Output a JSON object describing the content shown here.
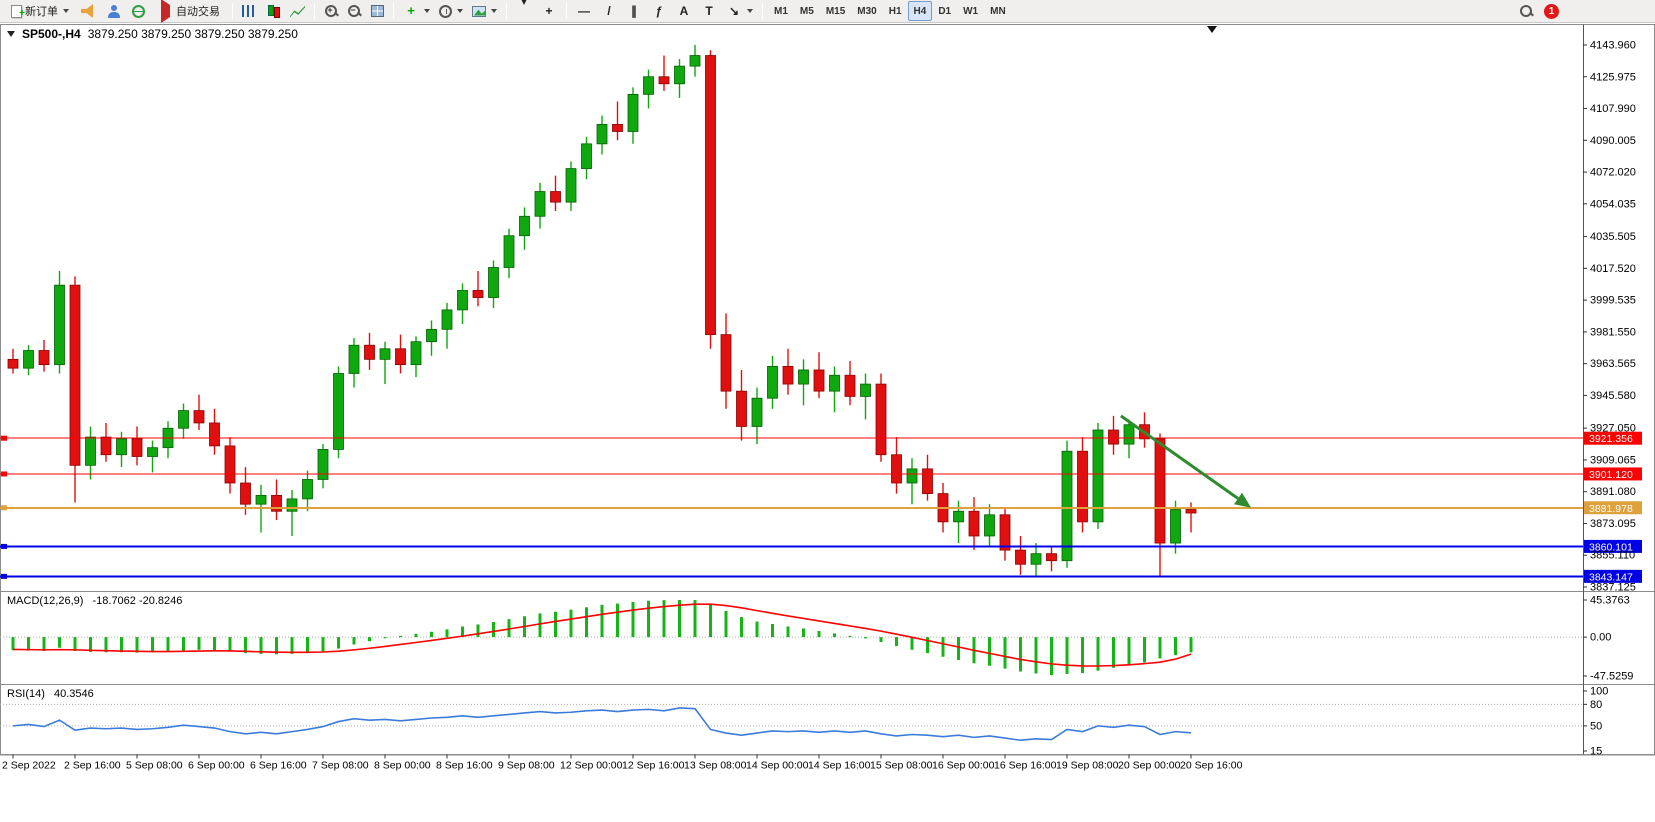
{
  "toolbar": {
    "new_order_label": "新订单",
    "autotrade_label": "自动交易",
    "timeframes": [
      "M1",
      "M5",
      "M15",
      "M30",
      "H1",
      "H4",
      "D1",
      "W1",
      "MN"
    ],
    "active_timeframe": "H4",
    "notification_count": "1"
  },
  "chart": {
    "title": "SP500-,H4",
    "ohlc": "3879.250 3879.250 3879.250 3879.250"
  },
  "macd": {
    "label": "MACD(12,26,9)",
    "values": "-18.7062 -20.8246",
    "axis": [
      "45.3763",
      "0.00",
      "-47.5259"
    ]
  },
  "rsi": {
    "label": "RSI(14)",
    "value": "40.3546",
    "axis": [
      "100",
      "80",
      "50",
      "15"
    ]
  },
  "colors": {
    "bull": "#0FA80F",
    "bull_border": "#056005",
    "bear": "#E01010",
    "bear_border": "#8B0000",
    "macd_bar": "#17B317",
    "macd_signal": "#FF0000",
    "rsi_line": "#3B7BDB",
    "frame": "#8c8c8c",
    "grid_dots": "#b0b0b0",
    "arrow": "#2E8B2E",
    "hline_red": "#FF0000",
    "hline_orange": "#DEA13C",
    "hline_blue": "#0000E6"
  },
  "chart_data": {
    "type": "candlestick",
    "symbol": "SP500-",
    "period": "H4",
    "price_axis_ticks": [
      "4143.960",
      "4125.975",
      "4107.990",
      "4090.005",
      "4072.020",
      "4054.035",
      "4035.505",
      "4017.520",
      "3999.535",
      "3981.550",
      "3963.565",
      "3945.580",
      "3927.050",
      "3909.065",
      "3891.080",
      "3873.095",
      "3855.110",
      "3837.125"
    ],
    "time_axis_labels": [
      "2 Sep 2022",
      "2 Sep 16:00",
      "5 Sep 08:00",
      "6 Sep 00:00",
      "6 Sep 16:00",
      "7 Sep 08:00",
      "8 Sep 00:00",
      "8 Sep 16:00",
      "9 Sep 08:00",
      "12 Sep 00:00",
      "12 Sep 16:00",
      "13 Sep 08:00",
      "14 Sep 00:00",
      "14 Sep 16:00",
      "15 Sep 08:00",
      "16 Sep 00:00",
      "16 Sep 16:00",
      "19 Sep 08:00",
      "20 Sep 00:00",
      "20 Sep 16:00"
    ],
    "price_range": [
      3831,
      4150
    ],
    "hlines": [
      {
        "price": 3921.356,
        "label": "3921.356",
        "color": "#FF0000",
        "width": 1
      },
      {
        "price": 3901.12,
        "label": "3901.120",
        "color": "#FF0000",
        "width": 1
      },
      {
        "price": 3881.978,
        "label": "3881.978",
        "color": "#DEA13C",
        "width": 2
      },
      {
        "price": 3860.101,
        "label": "3860.101",
        "color": "#0000E6",
        "width": 2
      },
      {
        "price": 3843.147,
        "label": "3843.147",
        "color": "#0000E6",
        "width": 2
      }
    ],
    "candles": [
      [
        3966,
        3972,
        3958,
        3961
      ],
      [
        3961,
        3974,
        3957,
        3971
      ],
      [
        3971,
        3977,
        3959,
        3963
      ],
      [
        3963,
        4016,
        3958,
        4008
      ],
      [
        4008,
        4013,
        3885,
        3906
      ],
      [
        3906,
        3928,
        3898,
        3922
      ],
      [
        3922,
        3930,
        3908,
        3912
      ],
      [
        3912,
        3925,
        3905,
        3921
      ],
      [
        3921,
        3928,
        3906,
        3911
      ],
      [
        3911,
        3920,
        3902,
        3916
      ],
      [
        3916,
        3931,
        3910,
        3927
      ],
      [
        3927,
        3941,
        3921,
        3937
      ],
      [
        3937,
        3946,
        3926,
        3930
      ],
      [
        3930,
        3938,
        3912,
        3917
      ],
      [
        3917,
        3922,
        3890,
        3896
      ],
      [
        3896,
        3905,
        3878,
        3884
      ],
      [
        3884,
        3895,
        3868,
        3889
      ],
      [
        3889,
        3898,
        3875,
        3880
      ],
      [
        3880,
        3892,
        3866,
        3887
      ],
      [
        3887,
        3903,
        3880,
        3898
      ],
      [
        3898,
        3918,
        3893,
        3915
      ],
      [
        3915,
        3962,
        3910,
        3958
      ],
      [
        3958,
        3978,
        3950,
        3974
      ],
      [
        3974,
        3981,
        3960,
        3966
      ],
      [
        3966,
        3976,
        3952,
        3972
      ],
      [
        3972,
        3980,
        3958,
        3963
      ],
      [
        3963,
        3979,
        3956,
        3976
      ],
      [
        3976,
        3988,
        3968,
        3983
      ],
      [
        3983,
        3998,
        3972,
        3994
      ],
      [
        3994,
        4009,
        3986,
        4005
      ],
      [
        4005,
        4016,
        3996,
        4001
      ],
      [
        4001,
        4022,
        3995,
        4018
      ],
      [
        4018,
        4040,
        4012,
        4036
      ],
      [
        4036,
        4052,
        4028,
        4047
      ],
      [
        4047,
        4066,
        4040,
        4061
      ],
      [
        4061,
        4070,
        4050,
        4055
      ],
      [
        4055,
        4078,
        4050,
        4074
      ],
      [
        4074,
        4092,
        4068,
        4088
      ],
      [
        4088,
        4104,
        4082,
        4099
      ],
      [
        4099,
        4112,
        4090,
        4095
      ],
      [
        4095,
        4120,
        4088,
        4116
      ],
      [
        4116,
        4130,
        4108,
        4126
      ],
      [
        4126,
        4138,
        4118,
        4122
      ],
      [
        4122,
        4136,
        4114,
        4132
      ],
      [
        4132,
        4144,
        4126,
        4138
      ],
      [
        4138,
        4141,
        3972,
        3980
      ],
      [
        3980,
        3992,
        3938,
        3948
      ],
      [
        3948,
        3960,
        3920,
        3928
      ],
      [
        3928,
        3950,
        3918,
        3944
      ],
      [
        3944,
        3968,
        3938,
        3962
      ],
      [
        3962,
        3972,
        3946,
        3952
      ],
      [
        3952,
        3966,
        3940,
        3960
      ],
      [
        3960,
        3970,
        3944,
        3948
      ],
      [
        3948,
        3962,
        3936,
        3957
      ],
      [
        3957,
        3965,
        3940,
        3945
      ],
      [
        3945,
        3958,
        3932,
        3952
      ],
      [
        3952,
        3958,
        3908,
        3912
      ],
      [
        3912,
        3922,
        3890,
        3896
      ],
      [
        3896,
        3910,
        3884,
        3904
      ],
      [
        3904,
        3912,
        3886,
        3890
      ],
      [
        3890,
        3896,
        3868,
        3874
      ],
      [
        3874,
        3886,
        3862,
        3880
      ],
      [
        3880,
        3888,
        3858,
        3866
      ],
      [
        3866,
        3884,
        3860,
        3878
      ],
      [
        3878,
        3882,
        3852,
        3858
      ],
      [
        3858,
        3866,
        3844,
        3850
      ],
      [
        3850,
        3862,
        3843,
        3856
      ],
      [
        3856,
        3860,
        3846,
        3852
      ],
      [
        3852,
        3920,
        3848,
        3914
      ],
      [
        3914,
        3922,
        3868,
        3874
      ],
      [
        3874,
        3930,
        3870,
        3926
      ],
      [
        3926,
        3934,
        3912,
        3918
      ],
      [
        3918,
        3932,
        3910,
        3929
      ],
      [
        3929,
        3936,
        3916,
        3921
      ],
      [
        3921,
        3924,
        3843,
        3862
      ],
      [
        3862,
        3886,
        3856,
        3881
      ],
      [
        3881,
        3885,
        3868,
        3879
      ]
    ],
    "indicators": {
      "macd": {
        "histogram": [
          -16,
          -16.5,
          -17,
          -13,
          -17,
          -18,
          -18.5,
          -18.5,
          -19,
          -18.5,
          -18,
          -16.5,
          -15.5,
          -15.8,
          -17.5,
          -19.5,
          -20.5,
          -21,
          -20.5,
          -19.5,
          -17.5,
          -14,
          -9,
          -5,
          -1.5,
          1.5,
          4,
          6.5,
          9.5,
          13,
          15.5,
          18.5,
          22,
          25.5,
          29,
          31,
          33.5,
          36.5,
          39.5,
          41,
          43,
          44.5,
          45.2,
          45.4,
          45.3,
          40,
          32,
          24.5,
          19,
          16,
          13,
          10.5,
          7.5,
          4.5,
          1.5,
          -1.5,
          -6,
          -11,
          -15.5,
          -19.5,
          -24,
          -28,
          -32,
          -35,
          -38.5,
          -42,
          -44.5,
          -46.5,
          -45,
          -44,
          -41,
          -37.5,
          -34,
          -31,
          -26,
          -22,
          -18.7
        ],
        "signal": [
          -15,
          -15.3,
          -15.6,
          -15.3,
          -15.6,
          -16.1,
          -16.6,
          -17,
          -17.3,
          -17.6,
          -17.6,
          -17.4,
          -17,
          -16.8,
          -16.9,
          -17.4,
          -18,
          -18.4,
          -18.6,
          -18.6,
          -18.2,
          -17.2,
          -15.6,
          -13.6,
          -11.4,
          -9,
          -6.6,
          -4.1,
          -1.5,
          1.2,
          4,
          6.9,
          9.9,
          13,
          16.2,
          19.2,
          22.1,
          25,
          27.9,
          30.5,
          33.1,
          35.4,
          37.4,
          39,
          40.2,
          40.2,
          38.6,
          35.8,
          32.4,
          29.1,
          25.9,
          22.8,
          19.8,
          16.7,
          13.7,
          10.6,
          7.3,
          3.6,
          -0.2,
          -4.1,
          -8.1,
          -12.1,
          -16.1,
          -19.9,
          -23.6,
          -27.3,
          -30.2,
          -32.7,
          -34.3,
          -35.2,
          -35.3,
          -34.8,
          -33.8,
          -32.4,
          -30.6,
          -26.9,
          -20.8
        ],
        "current": [
          -18.7062,
          -20.8246
        ],
        "range": [
          -47.5259,
          45.3763
        ]
      },
      "rsi": {
        "values": [
          50,
          52,
          49,
          58,
          44,
          47,
          46,
          47,
          45,
          46,
          48,
          51,
          49,
          47,
          42,
          39,
          41,
          39,
          42,
          45,
          49,
          56,
          60,
          58,
          59,
          57,
          59,
          61,
          62,
          64,
          62,
          64,
          66,
          68,
          70,
          68,
          69,
          71,
          72,
          70,
          72,
          73,
          71,
          75,
          74,
          45,
          40,
          37,
          40,
          43,
          42,
          43,
          41,
          43,
          41,
          43,
          39,
          36,
          38,
          37,
          35,
          37,
          34,
          36,
          33,
          30,
          32,
          31,
          45,
          42,
          50,
          48,
          51,
          49,
          38,
          42,
          40.35
        ],
        "current": 40.3546,
        "levels": [
          80,
          50
        ],
        "range": [
          15,
          100
        ]
      }
    },
    "arrow_annotation": {
      "from_index": 71.8,
      "from_price": 3934,
      "to_index": 80.2,
      "to_price": 3882,
      "color": "#2E8B2E"
    }
  }
}
